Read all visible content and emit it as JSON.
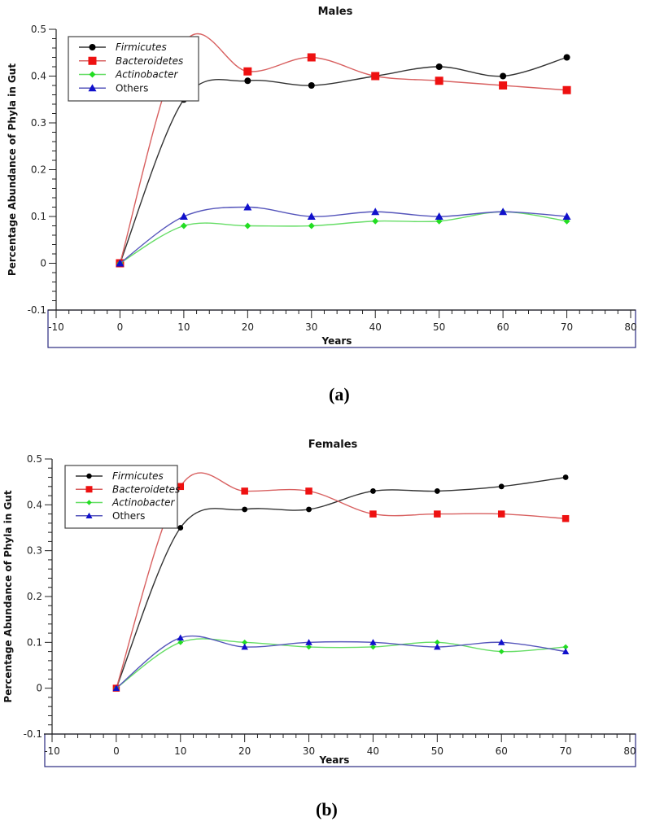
{
  "captions": [
    "(a)",
    "(b)"
  ],
  "chart_data": [
    {
      "type": "line",
      "title": "Males",
      "xlabel": "Years",
      "ylabel": "Percentage Abundance of Phyla in Gut",
      "xlim": [
        -10,
        80
      ],
      "ylim": [
        -0.1,
        0.5
      ],
      "xticks": [
        -10,
        0,
        10,
        20,
        30,
        40,
        50,
        60,
        70,
        80
      ],
      "yticks": [
        -0.1,
        0,
        0.1,
        0.2,
        0.3,
        0.4,
        0.5
      ],
      "ytick_labels": [
        "-0.1",
        "0",
        "0.1",
        "0.2",
        "0.3",
        "0.4",
        "0.5"
      ],
      "grid": false,
      "legend_position": "top-left",
      "x": [
        0,
        10,
        20,
        30,
        40,
        50,
        60,
        70
      ],
      "series": [
        {
          "name": "Firmicutes",
          "italic": true,
          "color": "#000000",
          "line_color": "#333333",
          "marker": "circle",
          "values": [
            0,
            0.35,
            0.39,
            0.38,
            0.4,
            0.42,
            0.4,
            0.44
          ]
        },
        {
          "name": "Bacteroidetes",
          "italic": true,
          "color": "#ee1111",
          "line_color": "#d86060",
          "marker": "square",
          "values": [
            0,
            0.47,
            0.41,
            0.44,
            0.4,
            0.39,
            0.38,
            0.37
          ]
        },
        {
          "name": "Actinobacter",
          "italic": true,
          "color": "#22dd22",
          "line_color": "#66dd66",
          "marker": "diamond",
          "values": [
            0,
            0.08,
            0.08,
            0.08,
            0.09,
            0.09,
            0.11,
            0.09
          ]
        },
        {
          "name": "Others",
          "italic": false,
          "color": "#1010cc",
          "line_color": "#5555bb",
          "marker": "triangle",
          "values": [
            0,
            0.1,
            0.12,
            0.1,
            0.11,
            0.1,
            0.11,
            0.1
          ]
        }
      ]
    },
    {
      "type": "line",
      "title": "Females",
      "xlabel": "Years",
      "ylabel": "Percentage Abundance of Phyla in Gut",
      "xlim": [
        -10,
        80
      ],
      "ylim": [
        -0.1,
        0.5
      ],
      "xticks": [
        -10,
        0,
        10,
        20,
        30,
        40,
        50,
        60,
        70,
        80
      ],
      "yticks": [
        -0.1,
        0,
        0.1,
        0.2,
        0.3,
        0.4,
        0.5
      ],
      "ytick_labels": [
        "-0.1",
        "0",
        "0.1",
        "0.2",
        "0.3",
        "0.4",
        "0.5"
      ],
      "grid": false,
      "legend_position": "top-left",
      "x": [
        0,
        10,
        20,
        30,
        40,
        50,
        60,
        70
      ],
      "series": [
        {
          "name": "Firmicutes",
          "italic": true,
          "color": "#000000",
          "line_color": "#333333",
          "marker": "circle",
          "values": [
            0,
            0.35,
            0.39,
            0.39,
            0.43,
            0.43,
            0.44,
            0.46
          ]
        },
        {
          "name": "Bacteroidetes",
          "italic": true,
          "color": "#ee1111",
          "line_color": "#d86060",
          "marker": "square",
          "values": [
            0,
            0.44,
            0.43,
            0.43,
            0.38,
            0.38,
            0.38,
            0.37
          ]
        },
        {
          "name": "Actinobacter",
          "italic": true,
          "color": "#22dd22",
          "line_color": "#66dd66",
          "marker": "diamond",
          "values": [
            0,
            0.1,
            0.1,
            0.09,
            0.09,
            0.1,
            0.08,
            0.09
          ]
        },
        {
          "name": "Others",
          "italic": false,
          "color": "#1010cc",
          "line_color": "#5555bb",
          "marker": "triangle",
          "values": [
            0,
            0.11,
            0.09,
            0.1,
            0.1,
            0.09,
            0.1,
            0.08
          ]
        }
      ]
    }
  ]
}
